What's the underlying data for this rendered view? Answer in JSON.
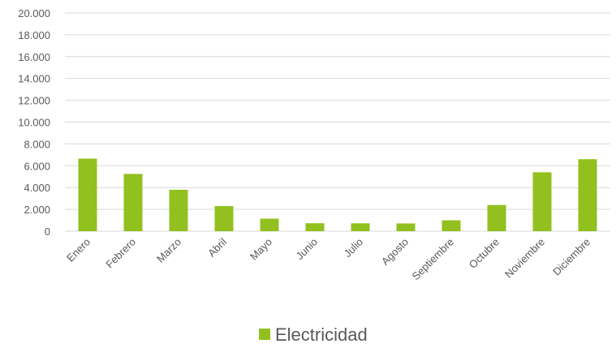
{
  "chart_data": {
    "type": "bar",
    "categories": [
      "Enero",
      "Febrero",
      "Marzo",
      "Abril",
      "Mayo",
      "Junio",
      "Julio",
      "Agosto",
      "Septiembre",
      "Octubre",
      "Noviembre",
      "Diciembre"
    ],
    "series": [
      {
        "name": "Electricidad",
        "color": "#92c01f",
        "values": [
          6650,
          5250,
          3800,
          2300,
          1150,
          730,
          720,
          710,
          1000,
          2400,
          5400,
          6600
        ]
      }
    ],
    "ylim": [
      0,
      20000
    ],
    "yticks": [
      "0",
      "2.000",
      "4.000",
      "6.000",
      "8.000",
      "10.000",
      "12.000",
      "14.000",
      "16.000",
      "18.000",
      "20.000"
    ],
    "ytick_values": [
      0,
      2000,
      4000,
      6000,
      8000,
      10000,
      12000,
      14000,
      16000,
      18000,
      20000
    ],
    "grid": true,
    "legend": "bottom",
    "gridline_color": "#d9d9d9"
  }
}
